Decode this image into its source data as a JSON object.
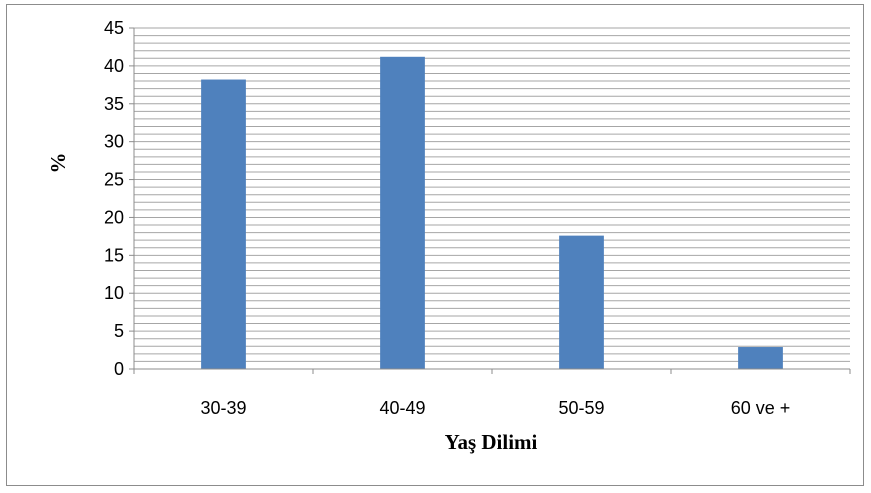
{
  "chart_data": {
    "type": "bar",
    "categories": [
      "30-39",
      "40-49",
      "50-59",
      "60 ve +"
    ],
    "values": [
      38.2,
      41.2,
      17.6,
      2.9
    ],
    "ylim": [
      0,
      45
    ],
    "yticks": [
      0,
      5,
      10,
      15,
      20,
      25,
      30,
      35,
      40,
      45
    ],
    "ylabel": "%",
    "xlabel": "Yaş Dilimi",
    "grid": true,
    "minor_grid_step": 1,
    "legend": "none",
    "bar_color": "#4f81bd",
    "grid_color": "#a6a6a6"
  }
}
